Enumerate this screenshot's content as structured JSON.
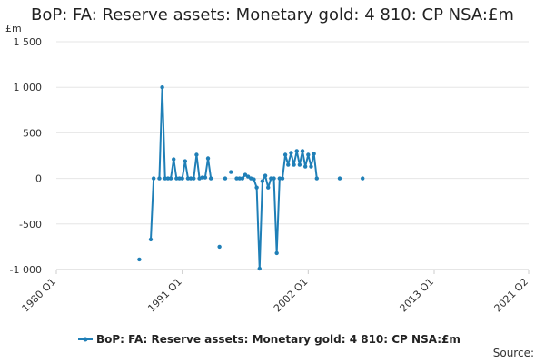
{
  "chart_data": {
    "type": "line",
    "title": "BoP: FA: Reserve assets: Monetary gold: 4 810: CP NSA:£m",
    "unit_label": "£m",
    "ylim": [
      -1000,
      1500
    ],
    "y_ticks": [
      1500,
      1000,
      500,
      0,
      -500,
      -1000
    ],
    "y_tick_labels": [
      "1 500",
      "1 000",
      "500",
      "0",
      "-500",
      "-1 000"
    ],
    "xlim": [
      "1980 Q1",
      "2021 Q2"
    ],
    "x_ticks": [
      "1980 Q1",
      "1991 Q1",
      "2002 Q1",
      "2013 Q1",
      "2021 Q2"
    ],
    "grid": true,
    "legend_position": "bottom",
    "source_label": "Source:",
    "series": [
      {
        "name": "BoP: FA: Reserve assets: Monetary gold: 4 810: CP NSA:£m",
        "color": "#1f7fb7",
        "points": [
          [
            "1987 Q2",
            -890
          ],
          [
            "1988 Q2",
            -670
          ],
          [
            "1988 Q3",
            0
          ],
          [
            "1989 Q1",
            0
          ],
          [
            "1989 Q2",
            1000
          ],
          [
            "1989 Q3",
            0
          ],
          [
            "1989 Q4",
            0
          ],
          [
            "1990 Q1",
            0
          ],
          [
            "1990 Q2",
            210
          ],
          [
            "1990 Q3",
            0
          ],
          [
            "1990 Q4",
            0
          ],
          [
            "1991 Q1",
            0
          ],
          [
            "1991 Q2",
            190
          ],
          [
            "1991 Q3",
            0
          ],
          [
            "1991 Q4",
            0
          ],
          [
            "1992 Q1",
            0
          ],
          [
            "1992 Q2",
            260
          ],
          [
            "1992 Q3",
            0
          ],
          [
            "1992 Q4",
            10
          ],
          [
            "1993 Q1",
            10
          ],
          [
            "1993 Q2",
            220
          ],
          [
            "1993 Q3",
            0
          ],
          [
            "1994 Q2",
            -750
          ],
          [
            "1994 Q4",
            0
          ],
          [
            "1995 Q2",
            70
          ],
          [
            "1995 Q4",
            0
          ],
          [
            "1996 Q1",
            0
          ],
          [
            "1996 Q2",
            0
          ],
          [
            "1996 Q3",
            40
          ],
          [
            "1996 Q4",
            20
          ],
          [
            "1997 Q1",
            0
          ],
          [
            "1997 Q2",
            -10
          ],
          [
            "1997 Q3",
            -100
          ],
          [
            "1997 Q4",
            -990
          ],
          [
            "1998 Q1",
            -30
          ],
          [
            "1998 Q2",
            30
          ],
          [
            "1998 Q3",
            -100
          ],
          [
            "1998 Q4",
            0
          ],
          [
            "1999 Q1",
            0
          ],
          [
            "1999 Q2",
            -820
          ],
          [
            "1999 Q3",
            0
          ],
          [
            "1999 Q4",
            0
          ],
          [
            "2000 Q1",
            260
          ],
          [
            "2000 Q2",
            150
          ],
          [
            "2000 Q3",
            280
          ],
          [
            "2000 Q4",
            150
          ],
          [
            "2001 Q1",
            300
          ],
          [
            "2001 Q2",
            150
          ],
          [
            "2001 Q3",
            300
          ],
          [
            "2001 Q4",
            130
          ],
          [
            "2002 Q1",
            260
          ],
          [
            "2002 Q2",
            130
          ],
          [
            "2002 Q3",
            270
          ],
          [
            "2002 Q4",
            0
          ],
          [
            "2004 Q4",
            0
          ],
          [
            "2006 Q4",
            0
          ]
        ]
      }
    ]
  }
}
